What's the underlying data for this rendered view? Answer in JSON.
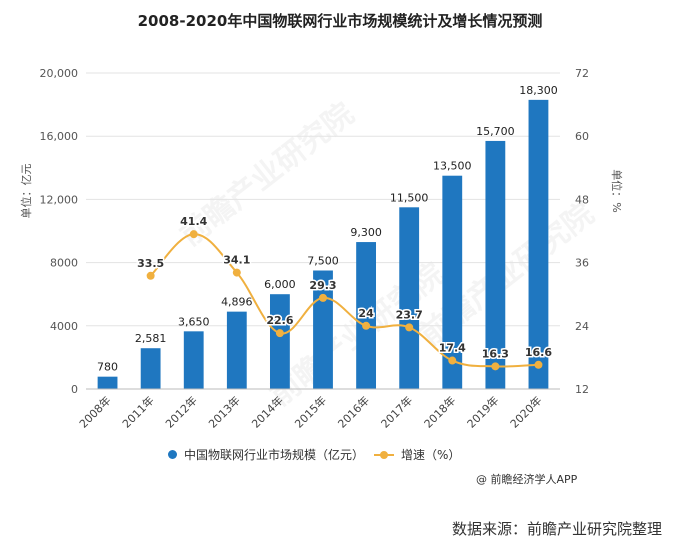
{
  "page": {
    "title": "2008-2020年中国物联网行业市场规模统计及增长情况预测",
    "credit": "@ 前瞻经济学人APP",
    "source": "数据来源：前瞻产业研究院整理",
    "watermark": "前瞻产业研究院"
  },
  "legend": {
    "bar_label": "中国物联网行业市场规模（亿元）",
    "line_label": "增速（%）"
  },
  "chart_data": {
    "type": "bar",
    "categories": [
      "2008年",
      "2011年",
      "2012年",
      "2013年",
      "2014年",
      "2015年",
      "2016年",
      "2017年",
      "2018年",
      "2019年",
      "2020年"
    ],
    "series": [
      {
        "name": "中国物联网行业市场规模（亿元）",
        "type": "bar",
        "axis": "left",
        "color": "#1f77c0",
        "values": [
          780,
          2581,
          3650,
          4896,
          6000,
          7500,
          9300,
          11500,
          13500,
          15700,
          18300
        ],
        "labels": [
          "780",
          "2,581",
          "3,650",
          "4,896",
          "6,000",
          "7,500",
          "9,300",
          "11,500",
          "13,500",
          "15,700",
          "18,300"
        ]
      },
      {
        "name": "增速（%）",
        "type": "line",
        "axis": "right",
        "color": "#f0b03f",
        "values": [
          null,
          33.5,
          41.4,
          34.1,
          22.6,
          29.3,
          24,
          23.7,
          17.4,
          16.3,
          16.6
        ],
        "labels": [
          "",
          "33.5",
          "41.4",
          "34.1",
          "22.6",
          "29.3",
          "24",
          "23.7",
          "17.4",
          "16.3",
          "16.6"
        ]
      }
    ],
    "ylabel": "单位：亿元",
    "y2label": "单位：%",
    "ylim": [
      0,
      20000
    ],
    "y2lim": [
      12,
      72
    ],
    "yticks": [
      "0",
      "4000",
      "8000",
      "12,000",
      "16,000",
      "20,000"
    ],
    "y2ticks": [
      "12",
      "24",
      "36",
      "48",
      "60",
      "72"
    ],
    "grid": true,
    "legend_position": "bottom"
  }
}
